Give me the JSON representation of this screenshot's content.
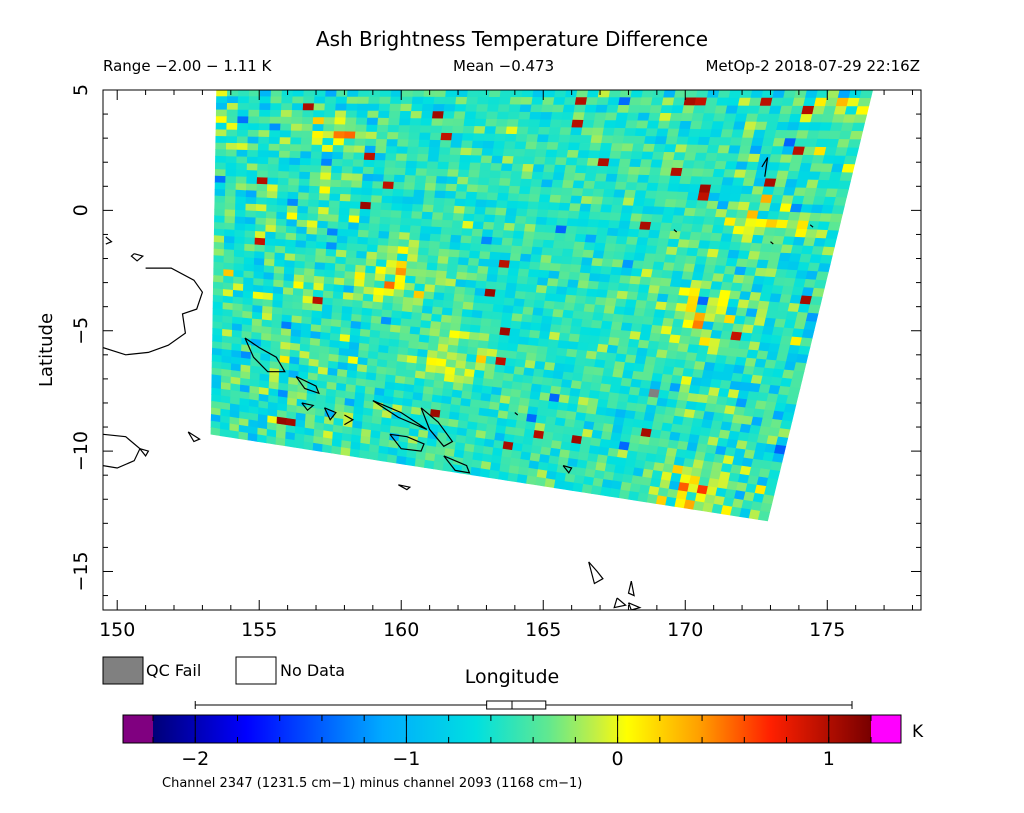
{
  "title": "Ash Brightness Temperature Difference",
  "subtitle": {
    "range": "Range −2.00 − 1.11 K",
    "mean": "Mean −0.473",
    "satellite": "MetOp-2 2018-07-29 22:16Z"
  },
  "axes": {
    "xlabel": "Longitude",
    "ylabel": "Latitude",
    "xticks": [
      "150",
      "155",
      "160",
      "165",
      "170",
      "175"
    ],
    "yticks": [
      "5",
      "0",
      "−5",
      "−10",
      "−15"
    ],
    "xlim": [
      149.5,
      178.3
    ],
    "ylim": [
      -16.6,
      5.0
    ]
  },
  "legend": {
    "qc_fail": "QC Fail",
    "no_data": "No Data",
    "qc_fail_color": "#808080",
    "no_data_color": "#ffffff"
  },
  "colorbar": {
    "unit": "K",
    "ticks": [
      "−2",
      "−1",
      "0",
      "1"
    ],
    "tick_values": [
      -2,
      -1,
      0,
      1
    ],
    "range": [
      -2.2,
      1.2
    ],
    "under_color": "#800080",
    "over_color": "#ff00ff",
    "caption": "Channel 2347 (1231.5 cm−1) minus channel 2093 (1168 cm−1)",
    "boxplot": {
      "min": -2.0,
      "q1": -0.62,
      "median": -0.5,
      "q3": -0.34,
      "max": 1.11
    }
  },
  "swath": {
    "corners": [
      [
        153.5,
        5.0
      ],
      [
        176.6,
        5.0
      ],
      [
        172.9,
        -12.9
      ],
      [
        153.3,
        -9.3
      ]
    ],
    "mean": -0.473,
    "min": -2.0,
    "max": 1.11
  },
  "coastlines": [
    [
      [
        151.0,
        -2.4
      ],
      [
        151.9,
        -2.4
      ],
      [
        152.7,
        -2.9
      ],
      [
        153.0,
        -3.4
      ],
      [
        152.8,
        -4.1
      ],
      [
        152.3,
        -4.3
      ],
      [
        152.4,
        -5.1
      ],
      [
        151.8,
        -5.6
      ],
      [
        151.1,
        -5.9
      ],
      [
        150.3,
        -6.0
      ],
      [
        149.5,
        -5.7
      ]
    ],
    [
      [
        150.6,
        -1.8
      ],
      [
        150.9,
        -1.9
      ],
      [
        150.7,
        -2.1
      ],
      [
        150.5,
        -1.9
      ],
      [
        150.6,
        -1.8
      ]
    ],
    [
      [
        149.6,
        -1.1
      ],
      [
        149.8,
        -1.3
      ],
      [
        149.6,
        -1.4
      ]
    ],
    [
      [
        154.5,
        -5.3
      ],
      [
        155.0,
        -5.7
      ],
      [
        155.6,
        -6.1
      ],
      [
        155.9,
        -6.7
      ],
      [
        155.3,
        -6.7
      ],
      [
        154.8,
        -6.1
      ],
      [
        154.5,
        -5.3
      ]
    ],
    [
      [
        156.3,
        -6.9
      ],
      [
        157.0,
        -7.3
      ],
      [
        157.1,
        -7.6
      ],
      [
        156.6,
        -7.4
      ],
      [
        156.3,
        -6.9
      ]
    ],
    [
      [
        156.5,
        -8.0
      ],
      [
        156.9,
        -8.1
      ],
      [
        156.7,
        -8.3
      ],
      [
        156.5,
        -8.0
      ]
    ],
    [
      [
        157.3,
        -8.2
      ],
      [
        157.7,
        -8.4
      ],
      [
        157.5,
        -8.7
      ],
      [
        157.3,
        -8.2
      ]
    ],
    [
      [
        158.0,
        -8.5
      ],
      [
        158.3,
        -8.7
      ],
      [
        158.0,
        -8.9
      ]
    ],
    [
      [
        159.0,
        -7.9
      ],
      [
        160.0,
        -8.4
      ],
      [
        160.9,
        -9.1
      ],
      [
        159.9,
        -8.6
      ],
      [
        159.0,
        -7.9
      ]
    ],
    [
      [
        160.7,
        -8.2
      ],
      [
        161.3,
        -8.8
      ],
      [
        161.8,
        -9.6
      ],
      [
        161.5,
        -9.8
      ],
      [
        161.0,
        -9.1
      ],
      [
        160.7,
        -8.2
      ]
    ],
    [
      [
        159.6,
        -9.3
      ],
      [
        160.2,
        -9.4
      ],
      [
        160.8,
        -9.7
      ],
      [
        160.7,
        -10.0
      ],
      [
        160.0,
        -9.9
      ],
      [
        159.6,
        -9.3
      ]
    ],
    [
      [
        161.5,
        -10.2
      ],
      [
        162.3,
        -10.6
      ],
      [
        162.4,
        -10.9
      ],
      [
        161.9,
        -10.8
      ],
      [
        161.5,
        -10.2
      ]
    ],
    [
      [
        165.7,
        -10.6
      ],
      [
        166.0,
        -10.7
      ],
      [
        165.9,
        -10.9
      ],
      [
        165.7,
        -10.6
      ]
    ],
    [
      [
        159.9,
        -11.4
      ],
      [
        160.3,
        -11.5
      ],
      [
        160.2,
        -11.6
      ],
      [
        159.9,
        -11.4
      ]
    ],
    [
      [
        149.5,
        -9.3
      ],
      [
        150.3,
        -9.4
      ],
      [
        150.8,
        -9.9
      ],
      [
        150.6,
        -10.4
      ],
      [
        150.0,
        -10.7
      ],
      [
        149.5,
        -10.6
      ]
    ],
    [
      [
        150.8,
        -9.9
      ],
      [
        151.1,
        -10.0
      ],
      [
        151.0,
        -10.2
      ],
      [
        150.8,
        -9.9
      ]
    ],
    [
      [
        152.5,
        -9.2
      ],
      [
        152.9,
        -9.5
      ],
      [
        152.7,
        -9.6
      ],
      [
        152.5,
        -9.2
      ]
    ],
    [
      [
        166.6,
        -14.6
      ],
      [
        166.9,
        -15.0
      ],
      [
        167.1,
        -15.3
      ],
      [
        166.8,
        -15.5
      ],
      [
        166.6,
        -14.6
      ]
    ],
    [
      [
        167.6,
        -16.1
      ],
      [
        167.9,
        -16.4
      ],
      [
        167.5,
        -16.5
      ],
      [
        167.6,
        -16.1
      ]
    ],
    [
      [
        168.1,
        -15.4
      ],
      [
        168.2,
        -16.0
      ],
      [
        168.0,
        -15.9
      ],
      [
        168.1,
        -15.4
      ]
    ],
    [
      [
        168.0,
        -16.3
      ],
      [
        168.4,
        -16.5
      ],
      [
        168.1,
        -16.6
      ],
      [
        168.0,
        -16.3
      ]
    ],
    [
      [
        164.0,
        -8.4
      ],
      [
        164.1,
        -8.5
      ]
    ],
    [
      [
        169.6,
        -0.8
      ],
      [
        169.7,
        -0.9
      ]
    ],
    [
      [
        173.0,
        -1.3
      ],
      [
        173.1,
        -1.4
      ]
    ],
    [
      [
        172.7,
        1.8
      ],
      [
        172.9,
        2.2
      ],
      [
        172.8,
        1.4
      ]
    ],
    [
      [
        174.4,
        -0.6
      ],
      [
        174.5,
        -0.7
      ]
    ]
  ]
}
